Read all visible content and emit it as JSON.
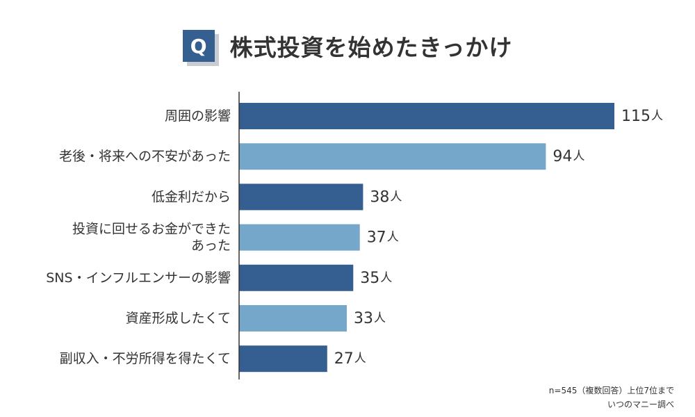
{
  "header": {
    "badge": "Q",
    "title": "株式投資を始めたきっかけ"
  },
  "colors": {
    "badge": "#355f91",
    "dark": "#355f91",
    "light": "#74a7c9",
    "axis": "#333333",
    "text": "#333333"
  },
  "chart_data": {
    "type": "bar",
    "orientation": "horizontal",
    "title": "株式投資を始めたきっかけ",
    "unit": "人",
    "categories": [
      "周囲の影響",
      "老後・将来への不安があった",
      "低金利だから",
      "投資に回せるお金ができたあった",
      "SNS・インフルエンサーの影響",
      "資産形成したくて",
      "副収入・不労所得を得たくて"
    ],
    "category_lines": [
      [
        "周囲の影響"
      ],
      [
        "老後・将来への不安があった"
      ],
      [
        "低金利だから"
      ],
      [
        "投資に回せるお金ができた",
        "あった"
      ],
      [
        "SNS・インフルエンサーの影響"
      ],
      [
        "資産形成したくて"
      ],
      [
        "副収入・不労所得を得たくて"
      ]
    ],
    "values": [
      115,
      94,
      38,
      37,
      35,
      33,
      27
    ],
    "value_labels": [
      "115",
      "94",
      "38",
      "37",
      "35",
      "33",
      "27"
    ],
    "bar_colors": [
      "dark",
      "light",
      "dark",
      "light",
      "dark",
      "light",
      "dark"
    ],
    "xlim": [
      0,
      115
    ],
    "grid": false,
    "legend": "none"
  },
  "footnote": {
    "line1": "n=545（複数回答）上位7位まで",
    "line2": "いつのマニー調べ"
  }
}
